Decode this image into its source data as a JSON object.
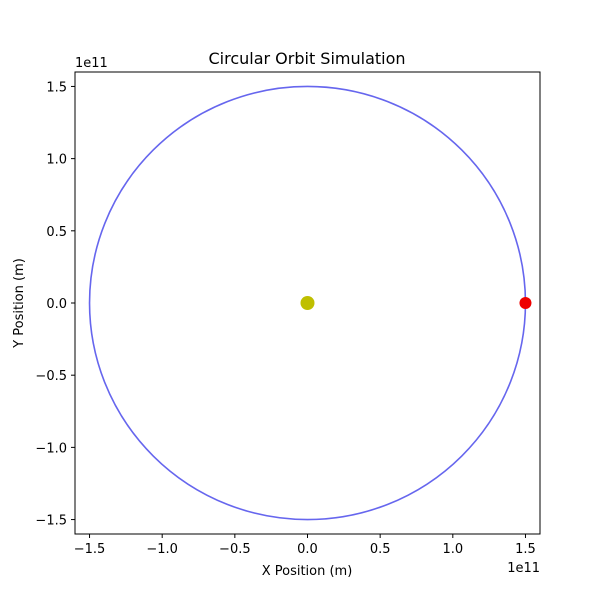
{
  "chart_data": {
    "type": "line",
    "title": "Circular Orbit Simulation",
    "xlabel": "X Position (m)",
    "ylabel": "Y Position (m)",
    "x_offset_label": "1e11",
    "y_offset_label": "1e11",
    "xlim": [
      -160000000000.0,
      160000000000.0
    ],
    "ylim": [
      -160000000000.0,
      160000000000.0
    ],
    "x_ticks": [
      -150000000000.0,
      -100000000000.0,
      -50000000000.0,
      0,
      50000000000.0,
      100000000000.0,
      150000000000.0
    ],
    "x_tick_labels": [
      "−1.5",
      "−1.0",
      "−0.5",
      "0.0",
      "0.5",
      "1.0",
      "1.5"
    ],
    "y_ticks": [
      -150000000000.0,
      -100000000000.0,
      -50000000000.0,
      0,
      50000000000.0,
      100000000000.0,
      150000000000.0
    ],
    "y_tick_labels": [
      "−1.5",
      "−1.0",
      "−0.5",
      "0.0",
      "0.5",
      "1.0",
      "1.5"
    ],
    "grid": false,
    "legend": "none",
    "series": [
      {
        "kind": "orbit-path",
        "shape": "circle",
        "center": [
          0,
          0
        ],
        "radius": 150000000000.0,
        "color": "#6666ee"
      }
    ],
    "points": [
      {
        "kind": "central-body",
        "x": 0,
        "y": 0,
        "color": "#bfbf00"
      },
      {
        "kind": "orbiting-body",
        "x": 150000000000.0,
        "y": 0,
        "color": "#ee0000"
      }
    ]
  }
}
